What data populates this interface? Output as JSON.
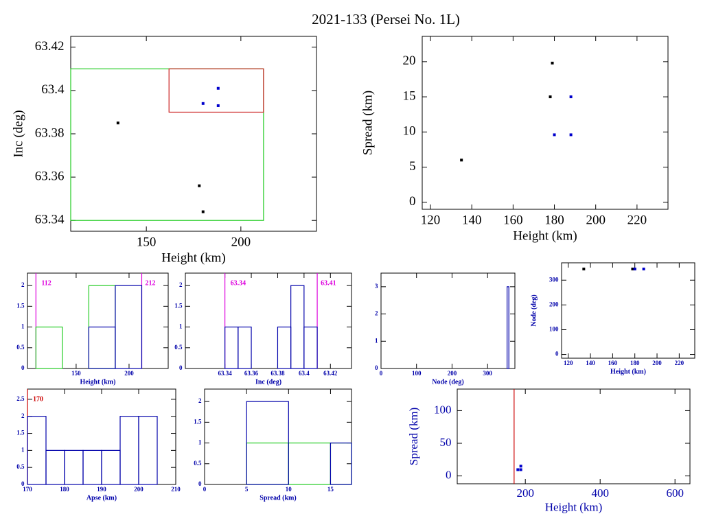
{
  "title": "2021-133 (Persei No. 1L)",
  "chart_data": [
    {
      "type": "scatter",
      "xlabel": "Height (km)",
      "ylabel": "Inc (deg)",
      "axis_color": "#000000",
      "xlim": [
        110,
        240
      ],
      "ylim": [
        63.335,
        63.425
      ],
      "xticks": [
        150,
        200
      ],
      "yticks": [
        63.34,
        63.36,
        63.38,
        63.4,
        63.42
      ],
      "boxes": [
        {
          "x": [
            110,
            212
          ],
          "y": [
            63.34,
            63.41
          ],
          "color": "#22cc22"
        },
        {
          "x": [
            162,
            212
          ],
          "y": [
            63.39,
            63.41
          ],
          "color": "#cc2222"
        }
      ],
      "series": [
        {
          "color": "#000000",
          "x": [
            135,
            178,
            180
          ],
          "values": [
            63.385,
            63.356,
            63.344
          ]
        },
        {
          "color": "#0000cc",
          "x": [
            180,
            188,
            188
          ],
          "values": [
            63.394,
            63.393,
            63.401
          ]
        }
      ]
    },
    {
      "type": "scatter",
      "xlabel": "Height (km)",
      "ylabel": "Spread (km)",
      "axis_color": "#000000",
      "xlim": [
        116,
        235
      ],
      "ylim": [
        -1,
        23.6
      ],
      "xticks": [
        120,
        140,
        160,
        180,
        200,
        220
      ],
      "yticks": [
        0,
        5,
        10,
        15,
        20
      ],
      "series": [
        {
          "color": "#000000",
          "x": [
            135,
            178,
            179
          ],
          "values": [
            6,
            15,
            19.8
          ]
        },
        {
          "color": "#0000cc",
          "x": [
            180,
            188,
            188
          ],
          "values": [
            9.6,
            9.6,
            15
          ]
        }
      ]
    },
    {
      "type": "histogram",
      "xlabel": "Height (km)",
      "axis_color": "#0000aa",
      "xlim": [
        104,
        237
      ],
      "ylim": [
        0,
        2.3
      ],
      "xticks": [
        150,
        200
      ],
      "yticks": [
        0,
        0.5,
        1,
        1.5,
        2
      ],
      "bins": [
        112,
        137,
        162,
        187,
        212
      ],
      "series": [
        {
          "color": "#22cc22",
          "values": [
            1,
            0,
            2,
            0
          ]
        },
        {
          "color": "#0000aa",
          "values": [
            0,
            0,
            1,
            2
          ]
        }
      ],
      "vlines": [
        {
          "value": 112,
          "color": "#dd00dd"
        },
        {
          "value": 212,
          "color": "#dd00dd"
        }
      ],
      "vline_labels": true
    },
    {
      "type": "histogram",
      "xlabel": "Inc (deg)",
      "axis_color": "#0000aa",
      "xlim": [
        63.31,
        63.436
      ],
      "ylim": [
        0,
        2.3
      ],
      "xticks": [
        63.34,
        63.36,
        63.38,
        63.4,
        63.42
      ],
      "yticks": [
        0,
        0.5,
        1,
        1.5,
        2
      ],
      "bins": [
        63.34,
        63.35,
        63.36,
        63.37,
        63.38,
        63.39,
        63.4,
        63.41
      ],
      "series": [
        {
          "color": "#0000aa",
          "values": [
            1,
            1,
            0,
            0,
            1,
            2,
            1
          ]
        }
      ],
      "vlines": [
        {
          "value": 63.34,
          "color": "#dd00dd"
        },
        {
          "value": 63.41,
          "color": "#dd00dd"
        }
      ],
      "vline_labels": true
    },
    {
      "type": "histogram",
      "xlabel": "Node (deg)",
      "axis_color": "#0000aa",
      "xlim": [
        0,
        377
      ],
      "ylim": [
        0,
        3.5
      ],
      "xticks": [
        0,
        100,
        200,
        300
      ],
      "yticks": [
        0,
        1,
        2,
        3
      ],
      "bins": [
        355,
        360
      ],
      "series": [
        {
          "color": "#0000aa",
          "values": [
            3
          ]
        }
      ]
    },
    {
      "type": "scatter",
      "xlabel": "Height (km)",
      "ylabel": "Node (deg)",
      "axis_color": "#0000aa",
      "xlim": [
        114,
        234
      ],
      "ylim": [
        -15,
        370
      ],
      "xticks": [
        120,
        140,
        160,
        180,
        200,
        220
      ],
      "yticks": [
        0,
        100,
        200,
        300
      ],
      "series": [
        {
          "color": "#000000",
          "x": [
            134,
            178,
            180
          ],
          "values": [
            345,
            345,
            345
          ]
        },
        {
          "color": "#0000cc",
          "x": [
            180,
            188
          ],
          "values": [
            345,
            345
          ]
        }
      ]
    },
    {
      "type": "histogram",
      "xlabel": "Apse (km)",
      "axis_color": "#0000aa",
      "xlim": [
        170,
        210
      ],
      "ylim": [
        0,
        2.8
      ],
      "xticks": [
        170,
        180,
        190,
        200,
        210
      ],
      "yticks": [
        0,
        0.5,
        1,
        1.5,
        2,
        2.5
      ],
      "bins": [
        170,
        175,
        180,
        185,
        190,
        195,
        200,
        205
      ],
      "series": [
        {
          "color": "#0000aa",
          "values": [
            2,
            1,
            1,
            1,
            1,
            2,
            2
          ]
        }
      ],
      "vlines": [
        {
          "value": 170,
          "color": "#cc0000"
        }
      ],
      "vline_labels": true
    },
    {
      "type": "histogram",
      "xlabel": "Spread (km)",
      "axis_color": "#0000aa",
      "xlim": [
        0,
        17.5
      ],
      "ylim": [
        0,
        2.3
      ],
      "xticks": [
        0,
        5,
        10,
        15
      ],
      "yticks": [
        0,
        0.5,
        1,
        1.5,
        2
      ],
      "bins": [
        0,
        5,
        10,
        15,
        20
      ],
      "series": [
        {
          "color": "#22cc22",
          "values": [
            0,
            1,
            1,
            1
          ]
        },
        {
          "color": "#0000aa",
          "values": [
            0,
            2,
            0,
            1
          ]
        }
      ]
    },
    {
      "type": "scatter",
      "xlabel": "Height (km)",
      "ylabel": "Spread (km)",
      "axis_color": "#0000aa",
      "xlim": [
        18,
        640
      ],
      "ylim": [
        -12,
        133
      ],
      "xticks": [
        200,
        400,
        600
      ],
      "yticks": [
        0,
        50,
        100
      ],
      "series": [
        {
          "color": "#0000cc",
          "x": [
            180,
            188,
            188
          ],
          "values": [
            9.6,
            9.6,
            15
          ]
        }
      ],
      "vlines": [
        {
          "value": 170,
          "color": "#cc0000"
        }
      ],
      "vline_labels": false
    }
  ]
}
